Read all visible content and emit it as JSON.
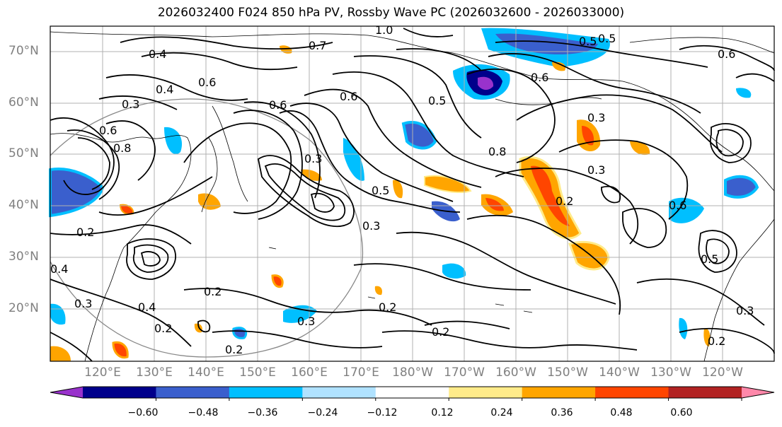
{
  "title": "2026032400 F024 850 hPa PV, Rossby Wave PC (2026032600 - 2026033000)",
  "lat_labels": [
    "70°N",
    "60°N",
    "50°N",
    "40°N",
    "30°N",
    "20°N"
  ],
  "lon_labels": [
    "120°E",
    "130°E",
    "140°E",
    "150°E",
    "160°E",
    "170°E",
    "180°W",
    "170°W",
    "160°W",
    "150°W",
    "140°W",
    "130°W",
    "120°W"
  ],
  "colorbar": {
    "ticks": [
      "−0.60",
      "−0.48",
      "−0.36",
      "−0.24",
      "−0.12",
      "0.12",
      "0.24",
      "0.36",
      "0.48",
      "0.60"
    ],
    "colors": [
      "#9932cc",
      "#00008b",
      "#3a5fcd",
      "#00bfff",
      "#b0e2ff",
      "#ffffff",
      "#ffeb8a",
      "#ffa500",
      "#ff4500",
      "#b22222",
      "#ff88aa"
    ]
  },
  "contour_labels": [
    "1.0",
    "0.7",
    "0.5",
    "0.4",
    "0.6",
    "0.4",
    "0.3",
    "0.6",
    "0.5",
    "0.3",
    "0.6",
    "0.3",
    "0.5",
    "0.2",
    "0.4",
    "0.2",
    "0.3",
    "0.2",
    "0.2",
    "0.2",
    "0.4",
    "0.2",
    "0.3",
    "0.2",
    "0.8",
    "0.6",
    "0.6",
    "0.5",
    "0.3",
    "0.8",
    "0.3",
    "0.6",
    "0.6",
    "0.5",
    "0.2",
    "0.3"
  ],
  "colors": {
    "axis_label": "#808080",
    "grid": "#b0b0b0"
  }
}
